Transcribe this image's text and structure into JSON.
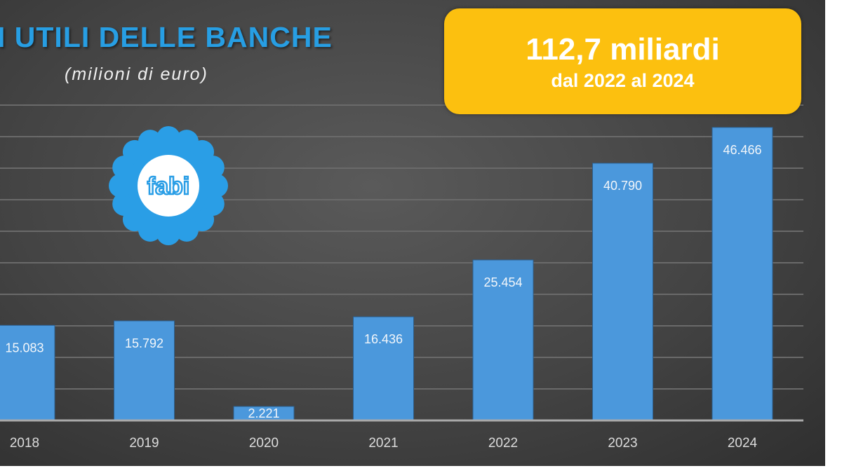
{
  "chart_data": {
    "type": "bar",
    "title": "I UTILI DELLE BANCHE",
    "subtitle": "(milioni di euro)",
    "xlabel": "",
    "ylabel": "",
    "categories": [
      "2018",
      "2019",
      "2020",
      "2021",
      "2022",
      "2023",
      "2024"
    ],
    "values": [
      15083,
      15792,
      2221,
      16436,
      25454,
      40790,
      46466
    ],
    "value_labels": [
      "15.083",
      "15.792",
      "2.221",
      "16.436",
      "25.454",
      "40.790",
      "46.466"
    ],
    "ylim": [
      0,
      50000
    ],
    "grid": true,
    "gridline_step": 5000,
    "bar_color": "#4b98dc"
  },
  "callout": {
    "headline": "112,7 miliardi",
    "subline": "dal 2022 al 2024",
    "color": "#fcc00f"
  },
  "logo": {
    "text": "fabi",
    "color": "#2a9ee6"
  }
}
